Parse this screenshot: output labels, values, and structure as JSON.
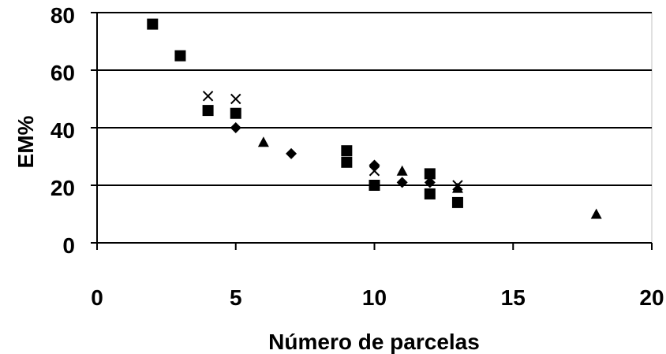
{
  "chart_data": {
    "type": "scatter",
    "title": "",
    "xlabel": "Número de parcelas",
    "ylabel": "EM%",
    "xlim": [
      0,
      20
    ],
    "ylim": [
      0,
      80
    ],
    "xticks": [
      "0",
      "5",
      "10",
      "15",
      "20"
    ],
    "yticks": [
      "0",
      "20",
      "40",
      "60",
      "80"
    ],
    "grid": "horizontal",
    "legend": "none",
    "series": [
      {
        "marker": "diamond",
        "color": "#000000",
        "points": [
          [
            5,
            40
          ],
          [
            7,
            31
          ],
          [
            10,
            27
          ],
          [
            11,
            21
          ],
          [
            12,
            21
          ]
        ]
      },
      {
        "marker": "square",
        "color": "#000000",
        "points": [
          [
            2,
            76
          ],
          [
            3,
            65
          ],
          [
            4,
            46
          ],
          [
            5,
            45
          ],
          [
            9,
            32
          ],
          [
            9,
            28
          ],
          [
            10,
            20
          ],
          [
            12,
            24
          ],
          [
            12,
            17
          ],
          [
            13,
            14
          ]
        ]
      },
      {
        "marker": "triangle",
        "color": "#000000",
        "points": [
          [
            6,
            35
          ],
          [
            11,
            25
          ],
          [
            13,
            19
          ],
          [
            18,
            10
          ]
        ]
      },
      {
        "marker": "x",
        "color": "#000000",
        "points": [
          [
            4,
            51
          ],
          [
            5,
            50
          ],
          [
            10,
            25
          ],
          [
            13,
            20
          ]
        ]
      }
    ]
  }
}
